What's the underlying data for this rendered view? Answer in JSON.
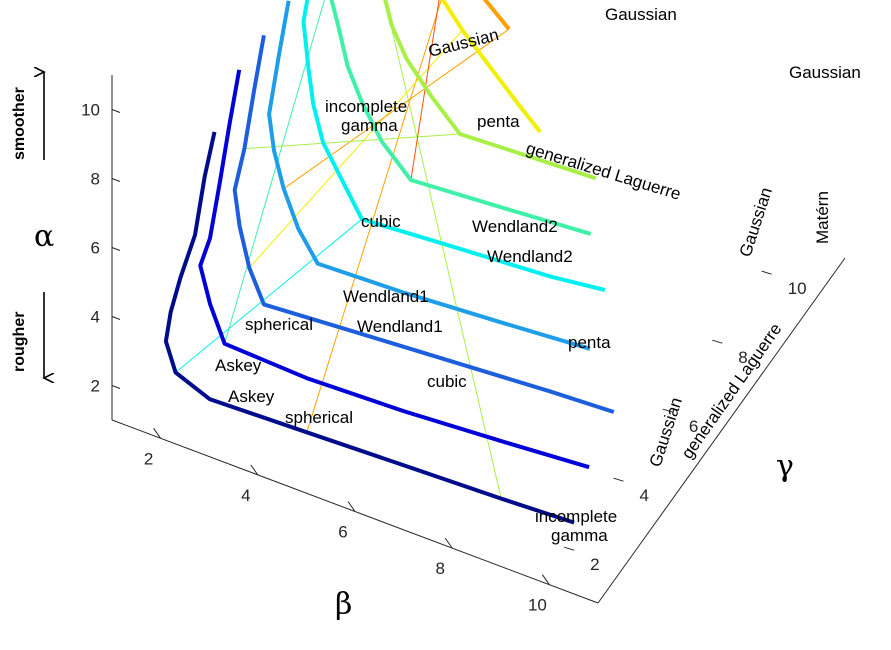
{
  "chart_data": {
    "type": "line",
    "title": "",
    "axes": {
      "alpha": {
        "label": "α",
        "ticks": [
          "2",
          "4",
          "6",
          "8",
          "10"
        ]
      },
      "beta": {
        "label": "β",
        "ticks": [
          "2",
          "4",
          "6",
          "8",
          "10"
        ]
      },
      "gamma": {
        "label": "γ",
        "ticks": [
          "2",
          "4",
          "6",
          "8",
          "10"
        ]
      }
    },
    "side_labels": {
      "top": "smoother",
      "bottom": "rougher"
    },
    "series": [
      {
        "color": "#000c8c",
        "gamma": 2,
        "points": [
          [
            2.6,
            9.2
          ],
          [
            2.4,
            7.8
          ],
          [
            2.2,
            6.0
          ],
          [
            1.9,
            4.6
          ],
          [
            1.7,
            3.5
          ],
          [
            1.6,
            2.6
          ],
          [
            1.8,
            1.8
          ],
          [
            2.5,
            1.4
          ],
          [
            4.5,
            1.5
          ],
          [
            6.5,
            1.6
          ],
          [
            8.5,
            1.7
          ],
          [
            10,
            1.8
          ]
        ]
      },
      {
        "color": "#0000d8",
        "gamma": 3,
        "points": [
          [
            2.6,
            10.0
          ],
          [
            2.4,
            8.3
          ],
          [
            2.2,
            6.5
          ],
          [
            2.0,
            4.8
          ],
          [
            1.8,
            3.9
          ],
          [
            2.0,
            2.9
          ],
          [
            2.3,
            1.9
          ],
          [
            4.0,
            1.8
          ],
          [
            6.0,
            1.9
          ],
          [
            8.0,
            2.1
          ],
          [
            9.8,
            2.3
          ]
        ]
      },
      {
        "color": "#1c5edb",
        "gamma": 4,
        "points": [
          [
            2.6,
            10.0
          ],
          [
            2.4,
            8.3
          ],
          [
            2.2,
            6.5
          ],
          [
            2.0,
            5.2
          ],
          [
            2.1,
            4.2
          ],
          [
            2.3,
            3.1
          ],
          [
            2.6,
            2.2
          ],
          [
            4.5,
            2.4
          ],
          [
            6.5,
            2.6
          ],
          [
            8.5,
            2.8
          ],
          [
            9.8,
            2.9
          ]
        ]
      },
      {
        "color": "#1e9ee8",
        "gamma": 5,
        "points": [
          [
            2.6,
            10.0
          ],
          [
            2.4,
            8.3
          ],
          [
            2.2,
            6.5
          ],
          [
            2.3,
            5.5
          ],
          [
            2.5,
            4.5
          ],
          [
            2.8,
            3.5
          ],
          [
            3.2,
            2.7
          ],
          [
            5.0,
            2.8
          ],
          [
            7.0,
            3.0
          ],
          [
            8.8,
            3.2
          ]
        ]
      },
      {
        "color": "#00f0f0",
        "gamma": 6,
        "points": [
          [
            2.6,
            10.0
          ],
          [
            2.4,
            8.3
          ],
          [
            2.5,
            7.0
          ],
          [
            2.6,
            6.0
          ],
          [
            2.8,
            5.0
          ],
          [
            3.2,
            4.1
          ],
          [
            3.6,
            3.2
          ],
          [
            5.5,
            3.4
          ],
          [
            7.5,
            3.6
          ],
          [
            8.6,
            3.8
          ]
        ]
      },
      {
        "color": "#40f0a8",
        "gamma": 7,
        "points": [
          [
            2.6,
            10.0
          ],
          [
            2.4,
            8.3
          ],
          [
            2.6,
            7.3
          ],
          [
            2.8,
            6.2
          ],
          [
            3.1,
            5.3
          ],
          [
            3.5,
            4.4
          ],
          [
            4.1,
            3.6
          ],
          [
            6.0,
            3.8
          ],
          [
            7.8,
            4.0
          ]
        ]
      },
      {
        "color": "#a8f048",
        "gamma": 8,
        "points": [
          [
            2.6,
            10.0
          ],
          [
            2.8,
            8.7
          ],
          [
            3.0,
            7.6
          ],
          [
            3.2,
            6.6
          ],
          [
            3.5,
            5.8
          ],
          [
            4.0,
            5.0
          ],
          [
            4.6,
            4.2
          ],
          [
            6.0,
            4.3
          ],
          [
            7.4,
            4.4
          ]
        ]
      },
      {
        "color": "#f0f000",
        "gamma": 8.5,
        "points": [
          [
            2.6,
            10.0
          ],
          [
            3.2,
            8.8
          ],
          [
            3.8,
            7.6
          ],
          [
            4.4,
            6.6
          ],
          [
            5.0,
            5.8
          ],
          [
            5.6,
            5.0
          ],
          [
            6.0,
            4.5
          ]
        ]
      },
      {
        "color": "#ffa000",
        "gamma": 9.4,
        "points": [
          [
            2.6,
            10.0
          ],
          [
            3.2,
            8.8
          ],
          [
            3.8,
            7.6
          ],
          [
            4.4,
            6.6
          ],
          [
            4.9,
            6.0
          ]
        ]
      },
      {
        "color": "#ff5000",
        "gamma": 10,
        "points": [
          [
            2.8,
            10.0
          ],
          [
            3.2,
            9.2
          ],
          [
            3.5,
            8.6
          ]
        ]
      }
    ],
    "annotations": [
      {
        "text": "Gaussian"
      },
      {
        "text": "Gaussian"
      },
      {
        "text": "Gaussian"
      },
      {
        "text": "Gaussian"
      },
      {
        "text": "Gaussian"
      },
      {
        "text": "incomplete gamma"
      },
      {
        "text": "incomplete gamma"
      },
      {
        "text": "penta"
      },
      {
        "text": "penta"
      },
      {
        "text": "generalized Laguerre"
      },
      {
        "text": "generalized Laguerre"
      },
      {
        "text": "cubic"
      },
      {
        "text": "cubic"
      },
      {
        "text": "Wendland2"
      },
      {
        "text": "Wendland2"
      },
      {
        "text": "Wendland1"
      },
      {
        "text": "Wendland1"
      },
      {
        "text": "spherical"
      },
      {
        "text": "spherical"
      },
      {
        "text": "Askey"
      },
      {
        "text": "Askey"
      },
      {
        "text": "Matérn"
      }
    ],
    "grid": false,
    "legend": "none"
  }
}
